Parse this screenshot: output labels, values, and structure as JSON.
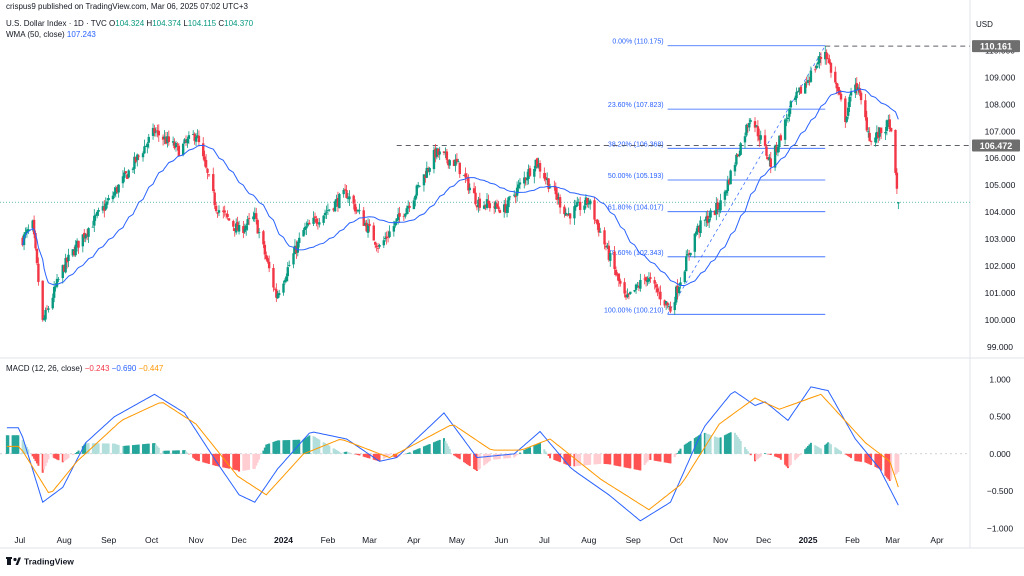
{
  "publish_line": "crispus9 published on TradingView.com, Mar 06, 2025 07:02 UTC+3",
  "currency": "USD",
  "footer_logo": "TradingView",
  "symbol_line": {
    "name": "U.S. Dollar Index · 1D · TVC",
    "o_label": "O",
    "o": "104.324",
    "h_label": "H",
    "h": "104.374",
    "l_label": "L",
    "l": "104.115",
    "c_label": "C",
    "c": "104.370"
  },
  "wma_line": {
    "label": "WMA (50, close)",
    "value": "107.243"
  },
  "macd_line": {
    "label": "MACD (12, 26, close)",
    "hist": "−0.243",
    "macd": "−0.690",
    "signal": "−0.447"
  },
  "colors": {
    "up": "#089981",
    "down": "#f23645",
    "wma": "#2962ff",
    "macd": "#2962ff",
    "signal": "#ff9800",
    "fib": "#2962ff",
    "price_badge": "#6e6e6e"
  },
  "chart_data": [
    {
      "type": "candlestick",
      "title": "U.S. Dollar Index · 1D · TVC",
      "ylabel": "USD",
      "ylim": [
        98.7,
        111.5
      ],
      "y_ticks": [
        "99.000",
        "100.000",
        "101.000",
        "102.000",
        "103.000",
        "104.000",
        "105.000",
        "106.000",
        "107.000",
        "108.000",
        "109.000",
        "110.000"
      ],
      "x_ticks": [
        "Jul",
        "Aug",
        "Sep",
        "Oct",
        "Nov",
        "Dec",
        "2024",
        "Feb",
        "Mar",
        "Apr",
        "May",
        "Jun",
        "Jul",
        "Aug",
        "Sep",
        "Oct",
        "Nov",
        "Dec",
        "2025",
        "Feb",
        "Mar",
        "Apr"
      ],
      "price_keypoints": [
        [
          "2023-07-03",
          103.0
        ],
        [
          "2023-07-10",
          103.5
        ],
        [
          "2023-07-17",
          99.9
        ],
        [
          "2023-07-31",
          101.9
        ],
        [
          "2023-08-15",
          103.2
        ],
        [
          "2023-09-01",
          104.4
        ],
        [
          "2023-09-15",
          105.5
        ],
        [
          "2023-10-03",
          107.0
        ],
        [
          "2023-10-20",
          106.3
        ],
        [
          "2023-11-01",
          106.9
        ],
        [
          "2023-11-15",
          104.2
        ],
        [
          "2023-12-01",
          103.3
        ],
        [
          "2023-12-12",
          103.8
        ],
        [
          "2023-12-27",
          100.9
        ],
        [
          "2024-01-15",
          103.3
        ],
        [
          "2024-02-14",
          104.7
        ],
        [
          "2024-03-08",
          102.7
        ],
        [
          "2024-04-01",
          104.6
        ],
        [
          "2024-04-16",
          106.2
        ],
        [
          "2024-05-01",
          105.8
        ],
        [
          "2024-05-15",
          104.4
        ],
        [
          "2024-06-03",
          104.1
        ],
        [
          "2024-06-25",
          105.9
        ],
        [
          "2024-07-17",
          103.9
        ],
        [
          "2024-08-01",
          104.4
        ],
        [
          "2024-08-27",
          100.7
        ],
        [
          "2024-09-10",
          101.6
        ],
        [
          "2024-09-27",
          100.4
        ],
        [
          "2024-10-15",
          103.3
        ],
        [
          "2024-11-01",
          104.3
        ],
        [
          "2024-11-22",
          107.6
        ],
        [
          "2024-12-06",
          105.8
        ],
        [
          "2024-12-20",
          107.9
        ],
        [
          "2025-01-13",
          110.0
        ],
        [
          "2025-01-27",
          107.5
        ],
        [
          "2025-02-03",
          108.9
        ],
        [
          "2025-02-14",
          106.6
        ],
        [
          "2025-02-27",
          107.3
        ],
        [
          "2025-03-05",
          104.3
        ]
      ],
      "last_price": {
        "open": 104.324,
        "high": 104.374,
        "low": 104.115,
        "close": 104.37
      },
      "indicators": [
        {
          "name": "WMA (50, close)",
          "value": 107.243
        }
      ],
      "levels": [
        {
          "label": "110.161",
          "value": 110.161,
          "style": "dashed"
        },
        {
          "label": "106.472",
          "value": 106.472,
          "style": "dashed"
        }
      ],
      "fibonacci": [
        {
          "label": "0.00% (110.175)",
          "value": 110.175
        },
        {
          "label": "23.60% (107.823)",
          "value": 107.823
        },
        {
          "label": "38.20% (106.368)",
          "value": 106.368
        },
        {
          "label": "50.00% (105.193)",
          "value": 105.193
        },
        {
          "label": "61.80% (104.017)",
          "value": 104.017
        },
        {
          "label": "78.60% (102.343)",
          "value": 102.343
        },
        {
          "label": "100.00% (100.210)",
          "value": 100.21
        }
      ]
    },
    {
      "type": "line",
      "title": "MACD (12, 26, close)",
      "ylim": [
        -1.05,
        1.1
      ],
      "y_ticks": [
        "1.000",
        "0.500",
        "0.000",
        "−0.500",
        "−1.000"
      ],
      "macd_keypoints": [
        [
          "2023-07-01",
          0.35
        ],
        [
          "2023-07-17",
          -0.65
        ],
        [
          "2023-07-31",
          -0.45
        ],
        [
          "2023-08-16",
          0.15
        ],
        [
          "2023-09-05",
          0.5
        ],
        [
          "2023-10-03",
          0.8
        ],
        [
          "2023-10-24",
          0.55
        ],
        [
          "2023-11-15",
          -0.1
        ],
        [
          "2023-12-01",
          -0.55
        ],
        [
          "2023-12-12",
          -0.65
        ],
        [
          "2023-12-28",
          -0.2
        ],
        [
          "2024-01-20",
          0.3
        ],
        [
          "2024-02-14",
          0.2
        ],
        [
          "2024-03-08",
          -0.1
        ],
        [
          "2024-03-20",
          -0.05
        ],
        [
          "2024-04-22",
          0.55
        ],
        [
          "2024-05-15",
          -0.05
        ],
        [
          "2024-06-10",
          0.0
        ],
        [
          "2024-06-28",
          0.3
        ],
        [
          "2024-07-20",
          -0.2
        ],
        [
          "2024-08-15",
          -0.55
        ],
        [
          "2024-09-06",
          -0.9
        ],
        [
          "2024-09-27",
          -0.65
        ],
        [
          "2024-10-20",
          0.35
        ],
        [
          "2024-11-10",
          0.85
        ],
        [
          "2024-11-25",
          0.65
        ],
        [
          "2024-12-02",
          0.7
        ],
        [
          "2024-12-18",
          0.45
        ],
        [
          "2025-01-03",
          0.9
        ],
        [
          "2025-01-15",
          0.85
        ],
        [
          "2025-02-03",
          0.2
        ],
        [
          "2025-02-20",
          -0.2
        ],
        [
          "2025-03-05",
          -0.69
        ]
      ],
      "signal_keypoints": [
        [
          "2023-07-01",
          0.1
        ],
        [
          "2023-07-22",
          -0.55
        ],
        [
          "2023-08-10",
          -0.1
        ],
        [
          "2023-09-10",
          0.45
        ],
        [
          "2023-10-08",
          0.7
        ],
        [
          "2023-11-01",
          0.4
        ],
        [
          "2023-11-30",
          -0.3
        ],
        [
          "2023-12-20",
          -0.55
        ],
        [
          "2024-01-15",
          0.0
        ],
        [
          "2024-02-10",
          0.2
        ],
        [
          "2024-03-15",
          -0.05
        ],
        [
          "2024-04-28",
          0.4
        ],
        [
          "2024-05-25",
          0.05
        ],
        [
          "2024-06-15",
          0.05
        ],
        [
          "2024-07-05",
          0.2
        ],
        [
          "2024-08-10",
          -0.35
        ],
        [
          "2024-09-12",
          -0.75
        ],
        [
          "2024-10-05",
          -0.4
        ],
        [
          "2024-10-31",
          0.4
        ],
        [
          "2024-11-25",
          0.75
        ],
        [
          "2024-12-12",
          0.6
        ],
        [
          "2025-01-10",
          0.8
        ],
        [
          "2025-02-10",
          0.15
        ],
        [
          "2025-02-27",
          -0.1
        ],
        [
          "2025-03-05",
          -0.447
        ]
      ],
      "last_values": {
        "histogram": -0.243,
        "macd": -0.69,
        "signal": -0.447
      }
    }
  ]
}
